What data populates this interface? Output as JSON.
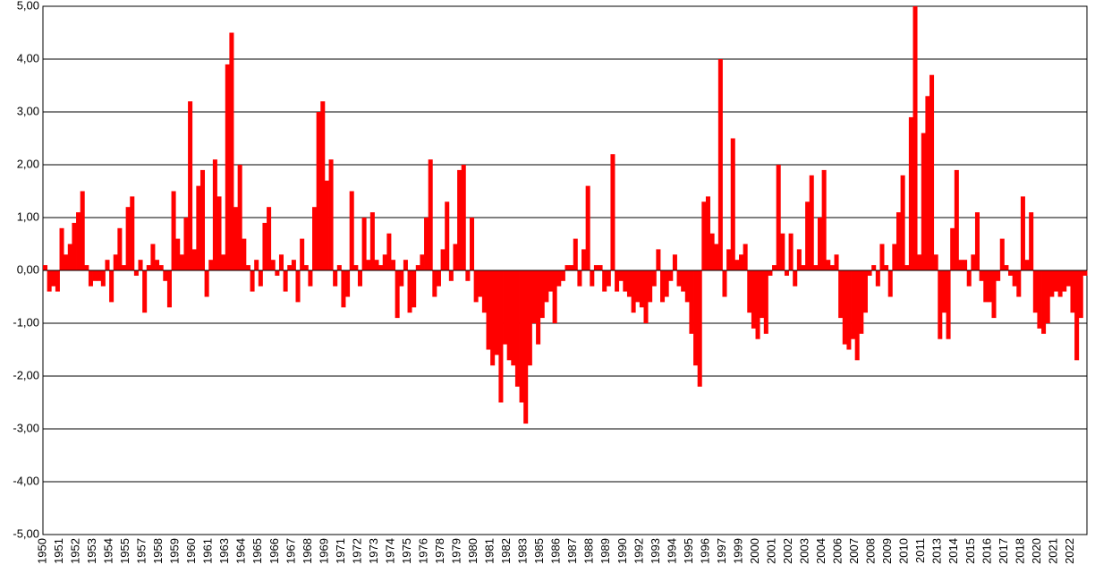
{
  "chart_data": {
    "type": "bar",
    "color": "#ff0000",
    "grid": true,
    "ylim": [
      -5,
      5
    ],
    "yticks": [
      {
        "value": -5,
        "label": "-5,00"
      },
      {
        "value": -4,
        "label": "-4,00"
      },
      {
        "value": -3,
        "label": "-3,00"
      },
      {
        "value": -2,
        "label": "-2,00"
      },
      {
        "value": -1,
        "label": "-1,00"
      },
      {
        "value": 0,
        "label": "0,00"
      },
      {
        "value": 1,
        "label": "1,00"
      },
      {
        "value": 2,
        "label": "2,00"
      },
      {
        "value": 3,
        "label": "3,00"
      },
      {
        "value": 4,
        "label": "4,00"
      },
      {
        "value": 5,
        "label": "5,00"
      }
    ],
    "categories": [
      "1950",
      null,
      null,
      null,
      "1951",
      null,
      null,
      null,
      "1952",
      null,
      null,
      null,
      "1953",
      null,
      null,
      null,
      "1954",
      null,
      null,
      null,
      "1955",
      null,
      null,
      null,
      "1957",
      null,
      null,
      null,
      "1958",
      null,
      null,
      null,
      "1959",
      null,
      null,
      null,
      "1960",
      null,
      null,
      null,
      "1961",
      null,
      null,
      null,
      "1963",
      null,
      null,
      null,
      "1964",
      null,
      null,
      null,
      "1965",
      null,
      null,
      null,
      "1966",
      null,
      null,
      null,
      "1967",
      null,
      null,
      null,
      "1968",
      null,
      null,
      null,
      "1969",
      null,
      null,
      null,
      "1971",
      null,
      null,
      null,
      "1972",
      null,
      null,
      null,
      "1973",
      null,
      null,
      null,
      "1974",
      null,
      null,
      null,
      "1975",
      null,
      null,
      null,
      "1976",
      null,
      null,
      null,
      "1978",
      null,
      null,
      null,
      "1979",
      null,
      null,
      null,
      "1980",
      null,
      null,
      null,
      "1981",
      null,
      null,
      null,
      "1982",
      null,
      null,
      null,
      "1983",
      null,
      null,
      null,
      "1985",
      null,
      null,
      null,
      "1986",
      null,
      null,
      null,
      "1987",
      null,
      null,
      null,
      "1988",
      null,
      null,
      null,
      "1989",
      null,
      null,
      null,
      "1990",
      null,
      null,
      null,
      "1992",
      null,
      null,
      null,
      "1993",
      null,
      null,
      null,
      "1994",
      null,
      null,
      null,
      "1995",
      null,
      null,
      null,
      "1996",
      null,
      null,
      null,
      "1997",
      null,
      null,
      null,
      "1999",
      null,
      null,
      null,
      "2000",
      null,
      null,
      null,
      "2001",
      null,
      null,
      null,
      "2002",
      null,
      null,
      null,
      "2003",
      null,
      null,
      null,
      "2004",
      null,
      null,
      null,
      "2006",
      null,
      null,
      null,
      "2007",
      null,
      null,
      null,
      "2008",
      null,
      null,
      null,
      "2009",
      null,
      null,
      null,
      "2010",
      null,
      null,
      null,
      "2011",
      null,
      null,
      null,
      "2013",
      null,
      null,
      null,
      "2014",
      null,
      null,
      null,
      "2015",
      null,
      null,
      null,
      "2016",
      null,
      null,
      null,
      "2017",
      null,
      null,
      null,
      "2018",
      null,
      null,
      null,
      "2020",
      null,
      null,
      null,
      "2021",
      null,
      null,
      null,
      "2022",
      null,
      null,
      null
    ],
    "values": [
      0.1,
      -0.4,
      -0.3,
      -0.4,
      0.8,
      0.3,
      0.5,
      0.9,
      1.1,
      1.5,
      0.1,
      -0.3,
      -0.2,
      -0.2,
      -0.3,
      0.2,
      -0.6,
      0.3,
      0.8,
      0.1,
      1.2,
      1.4,
      -0.1,
      0.2,
      -0.8,
      0.1,
      0.5,
      0.2,
      0.1,
      -0.2,
      -0.7,
      1.5,
      0.6,
      0.3,
      1.0,
      3.2,
      0.4,
      1.6,
      1.9,
      -0.5,
      0.2,
      2.1,
      1.4,
      0.3,
      3.9,
      4.5,
      1.2,
      2.0,
      0.6,
      0.1,
      -0.4,
      0.2,
      -0.3,
      0.9,
      1.2,
      0.2,
      -0.1,
      0.3,
      -0.4,
      0.1,
      0.2,
      -0.6,
      0.6,
      0.1,
      -0.3,
      1.2,
      3.0,
      3.2,
      1.7,
      2.1,
      -0.3,
      0.1,
      -0.7,
      -0.5,
      1.5,
      0.1,
      -0.3,
      1.0,
      0.2,
      1.1,
      0.2,
      0.1,
      0.3,
      0.7,
      0.2,
      -0.9,
      -0.3,
      0.2,
      -0.8,
      -0.7,
      0.1,
      0.3,
      1.0,
      2.1,
      -0.5,
      -0.3,
      0.4,
      1.3,
      -0.2,
      0.5,
      1.9,
      2.0,
      -0.2,
      1.0,
      -0.6,
      -0.5,
      -0.8,
      -1.5,
      -1.8,
      -1.6,
      -2.5,
      -1.4,
      -1.7,
      -1.8,
      -2.2,
      -2.5,
      -2.9,
      -1.8,
      -1.0,
      -1.4,
      -0.9,
      -0.6,
      -0.4,
      -1.0,
      -0.3,
      -0.2,
      0.1,
      0.1,
      0.6,
      -0.3,
      0.4,
      1.6,
      -0.3,
      0.1,
      0.1,
      -0.4,
      -0.3,
      2.2,
      -0.4,
      -0.2,
      -0.4,
      -0.5,
      -0.8,
      -0.6,
      -0.7,
      -1.0,
      -0.6,
      -0.3,
      0.4,
      -0.6,
      -0.5,
      -0.2,
      0.3,
      -0.3,
      -0.4,
      -0.6,
      -1.2,
      -1.8,
      -2.2,
      1.3,
      1.4,
      0.7,
      0.5,
      4.0,
      -0.5,
      0.4,
      2.5,
      0.2,
      0.3,
      0.5,
      -0.8,
      -1.1,
      -1.3,
      -0.9,
      -1.2,
      -0.1,
      0.1,
      2.0,
      0.7,
      -0.1,
      0.7,
      -0.3,
      0.4,
      0.1,
      1.3,
      1.8,
      0.1,
      1.0,
      1.9,
      0.2,
      0.1,
      0.3,
      -0.9,
      -1.4,
      -1.5,
      -1.3,
      -1.7,
      -1.2,
      -0.8,
      -0.1,
      0.1,
      -0.3,
      0.5,
      0.1,
      -0.5,
      0.5,
      1.1,
      1.8,
      0.1,
      2.9,
      5.0,
      0.3,
      2.6,
      3.3,
      3.7,
      0.3,
      -1.3,
      -0.8,
      -1.3,
      0.8,
      1.9,
      0.2,
      0.2,
      -0.3,
      0.3,
      1.1,
      -0.2,
      -0.6,
      -0.6,
      -0.9,
      -0.2,
      0.6,
      0.1,
      -0.1,
      -0.3,
      -0.5,
      1.4,
      0.2,
      1.1,
      -0.8,
      -1.1,
      -1.2,
      -1.0,
      -0.5,
      -0.4,
      -0.5,
      -0.4,
      -0.3,
      -0.8,
      -1.7,
      -0.9,
      -0.1
    ]
  }
}
